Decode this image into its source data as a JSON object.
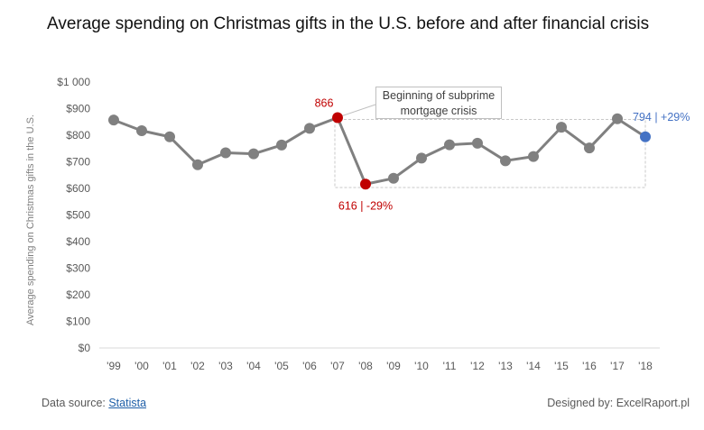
{
  "chart_data": {
    "type": "line",
    "title": "Average spending on Christmas gifts in the U.S. before and after financial crisis",
    "ylabel": "Average spending on Christmas gifts in the U.S.",
    "xlabel": "",
    "categories": [
      "'99",
      "'00",
      "'01",
      "'02",
      "'03",
      "'04",
      "'05",
      "'06",
      "'07",
      "'08",
      "'09",
      "'10",
      "'11",
      "'12",
      "'13",
      "'14",
      "'15",
      "'16",
      "'17",
      "'18"
    ],
    "series": [
      {
        "values": [
          857,
          817,
          794,
          689,
          734,
          730,
          763,
          826,
          866,
          616,
          638,
          714,
          764,
          770,
          704,
          720,
          830,
          752,
          862,
          794
        ]
      }
    ],
    "ylim": [
      0,
      1000
    ],
    "yticks": [
      0,
      100,
      200,
      300,
      400,
      500,
      600,
      700,
      800,
      900,
      1000
    ],
    "ytick_labels": [
      "$0",
      "$100",
      "$200",
      "$300",
      "$400",
      "$500",
      "$600",
      "$700",
      "$800",
      "$900",
      "$1 000"
    ],
    "grid": false,
    "highlights": {
      "peak_index": 8,
      "trough_index": 9,
      "last_index": 19
    },
    "annotations": {
      "peak_label": "866",
      "trough_label": "616 | -29%",
      "last_label": "794 | +29%",
      "box_line1": "Beginning of subprime",
      "box_line2": "mortgage crisis"
    },
    "colors": {
      "line": "#808080",
      "highlight_red": "#c00000",
      "highlight_blue": "#4472c4",
      "axis": "#d9d9d9",
      "tick_text": "#595959"
    }
  },
  "footer": {
    "source_prefix": "Data source: ",
    "source_link": "Statista",
    "credit": "Designed by: ExcelRaport.pl"
  }
}
